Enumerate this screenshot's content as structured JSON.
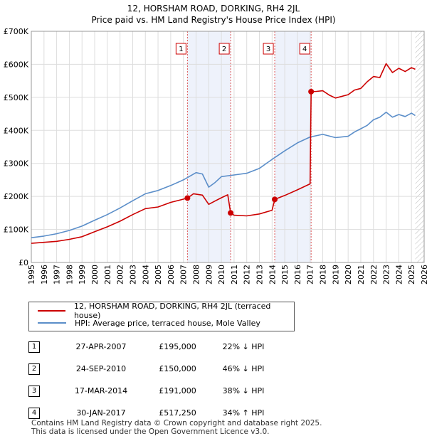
{
  "chart_data": {
    "type": "line",
    "title": "12, HORSHAM ROAD, DORKING, RH4 2JL",
    "subtitle": "Price paid vs. HM Land Registry's House Price Index (HPI)",
    "ylim": [
      0,
      700000
    ],
    "xlim": [
      1995,
      2026
    ],
    "y_tick_labels": [
      "£0",
      "£100K",
      "£200K",
      "£300K",
      "£400K",
      "£500K",
      "£600K",
      "£700K"
    ],
    "y_tick_values": [
      0,
      100000,
      200000,
      300000,
      400000,
      500000,
      600000,
      700000
    ],
    "x_tick_labels": [
      "1995",
      "1996",
      "1997",
      "1998",
      "1999",
      "2000",
      "2001",
      "2002",
      "2003",
      "2004",
      "2005",
      "2006",
      "2007",
      "2008",
      "2009",
      "2010",
      "2011",
      "2012",
      "2013",
      "2014",
      "2015",
      "2016",
      "2017",
      "2018",
      "2019",
      "2020",
      "2021",
      "2022",
      "2023",
      "2024",
      "2025",
      "2026"
    ],
    "grid": true,
    "series": [
      {
        "name": "12, HORSHAM ROAD, DORKING, RH4 2JL (terraced house)",
        "color": "#cc0000",
        "x": [
          1995,
          1996,
          1997,
          1998,
          1999,
          2000,
          2001,
          2002,
          2003,
          2004,
          2005,
          2006,
          2007.32,
          2007.8,
          2008.5,
          2009,
          2009.5,
          2010,
          2010.5,
          2010.73,
          2011,
          2012,
          2013,
          2014,
          2014.21,
          2015,
          2016,
          2017,
          2017.08,
          2017.5,
          2018,
          2018.5,
          2019,
          2020,
          2020.5,
          2021,
          2021.5,
          2022,
          2022.5,
          2023,
          2023.5,
          2024,
          2024.5,
          2025,
          2025.3
        ],
        "y": [
          58000,
          61000,
          64000,
          70000,
          78000,
          93000,
          108000,
          125000,
          145000,
          163000,
          168000,
          182000,
          195000,
          208000,
          204000,
          176000,
          186000,
          196000,
          205000,
          150000,
          143000,
          141000,
          147000,
          158000,
          191000,
          203000,
          220000,
          238000,
          517250,
          518000,
          520000,
          507000,
          498000,
          508000,
          522000,
          527000,
          547000,
          563000,
          560000,
          602000,
          575000,
          588000,
          578000,
          590000,
          585000
        ]
      },
      {
        "name": "HPI: Average price, terraced house, Mole Valley",
        "color": "#5b8ec9",
        "x": [
          1995,
          1996,
          1997,
          1998,
          1999,
          2000,
          2001,
          2002,
          2003,
          2004,
          2005,
          2006,
          2007,
          2008,
          2008.5,
          2009,
          2009.5,
          2010,
          2011,
          2012,
          2013,
          2014,
          2015,
          2016,
          2017,
          2018,
          2019,
          2020,
          2020.5,
          2021,
          2021.5,
          2022,
          2022.5,
          2023,
          2023.5,
          2024,
          2024.5,
          2025,
          2025.3
        ],
        "y": [
          75000,
          80000,
          87000,
          97000,
          110000,
          128000,
          145000,
          165000,
          187000,
          208000,
          218000,
          233000,
          250000,
          272000,
          268000,
          228000,
          242000,
          260000,
          265000,
          270000,
          285000,
          312000,
          338000,
          362000,
          380000,
          388000,
          378000,
          382000,
          395000,
          405000,
          415000,
          432000,
          440000,
          455000,
          440000,
          448000,
          442000,
          452000,
          445000
        ]
      }
    ],
    "transactions": [
      {
        "num": "1",
        "x": 2007.32,
        "value": 195000
      },
      {
        "num": "2",
        "x": 2010.73,
        "value": 150000
      },
      {
        "num": "3",
        "x": 2014.21,
        "value": 191000
      },
      {
        "num": "4",
        "x": 2017.08,
        "value": 517250
      }
    ],
    "shaded_periods": [
      [
        2007.32,
        2010.73
      ],
      [
        2014.21,
        2017.08
      ]
    ],
    "hatched_from": 2025.3,
    "line_color_price": "#cc0000",
    "line_color_hpi": "#5b8ec9",
    "shade_color": "#eef2fb"
  },
  "legend": {
    "price_label": "12, HORSHAM ROAD, DORKING, RH4 2JL (terraced house)",
    "hpi_label": "HPI: Average price, terraced house, Mole Valley"
  },
  "table": [
    {
      "num": "1",
      "date": "27-APR-2007",
      "price": "£195,000",
      "hpi": "22% ↓ HPI"
    },
    {
      "num": "2",
      "date": "24-SEP-2010",
      "price": "£150,000",
      "hpi": "46% ↓ HPI"
    },
    {
      "num": "3",
      "date": "17-MAR-2014",
      "price": "£191,000",
      "hpi": "38% ↓ HPI"
    },
    {
      "num": "4",
      "date": "30-JAN-2017",
      "price": "£517,250",
      "hpi": "34% ↑ HPI"
    }
  ],
  "footer": {
    "line1": "Contains HM Land Registry data © Crown copyright and database right 2025.",
    "line2": "This data is licensed under the Open Government Licence v3.0."
  }
}
